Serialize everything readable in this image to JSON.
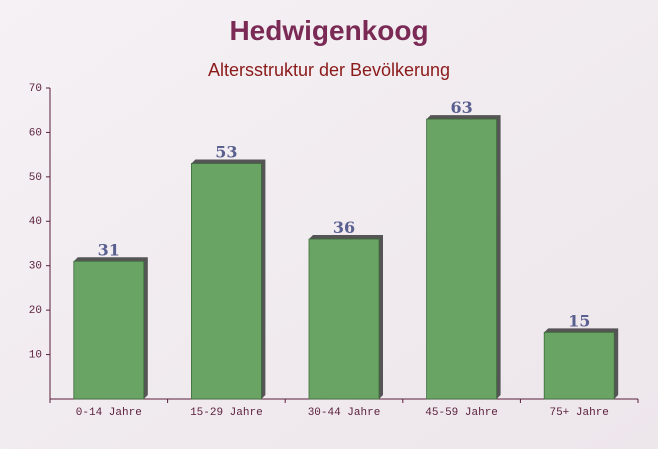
{
  "chart_data": {
    "type": "bar",
    "title": "Hedwigenkoog",
    "subtitle": "Altersstruktur der Bevölkerung",
    "categories": [
      "0-14 Jahre",
      "15-29 Jahre",
      "30-44 Jahre",
      "45-59 Jahre",
      "75+ Jahre"
    ],
    "values": [
      31,
      53,
      36,
      63,
      15
    ],
    "color": "#6aa465",
    "ylim": [
      0,
      70
    ],
    "yticks": [
      10,
      20,
      30,
      40,
      50,
      60,
      70
    ],
    "grid": false
  }
}
